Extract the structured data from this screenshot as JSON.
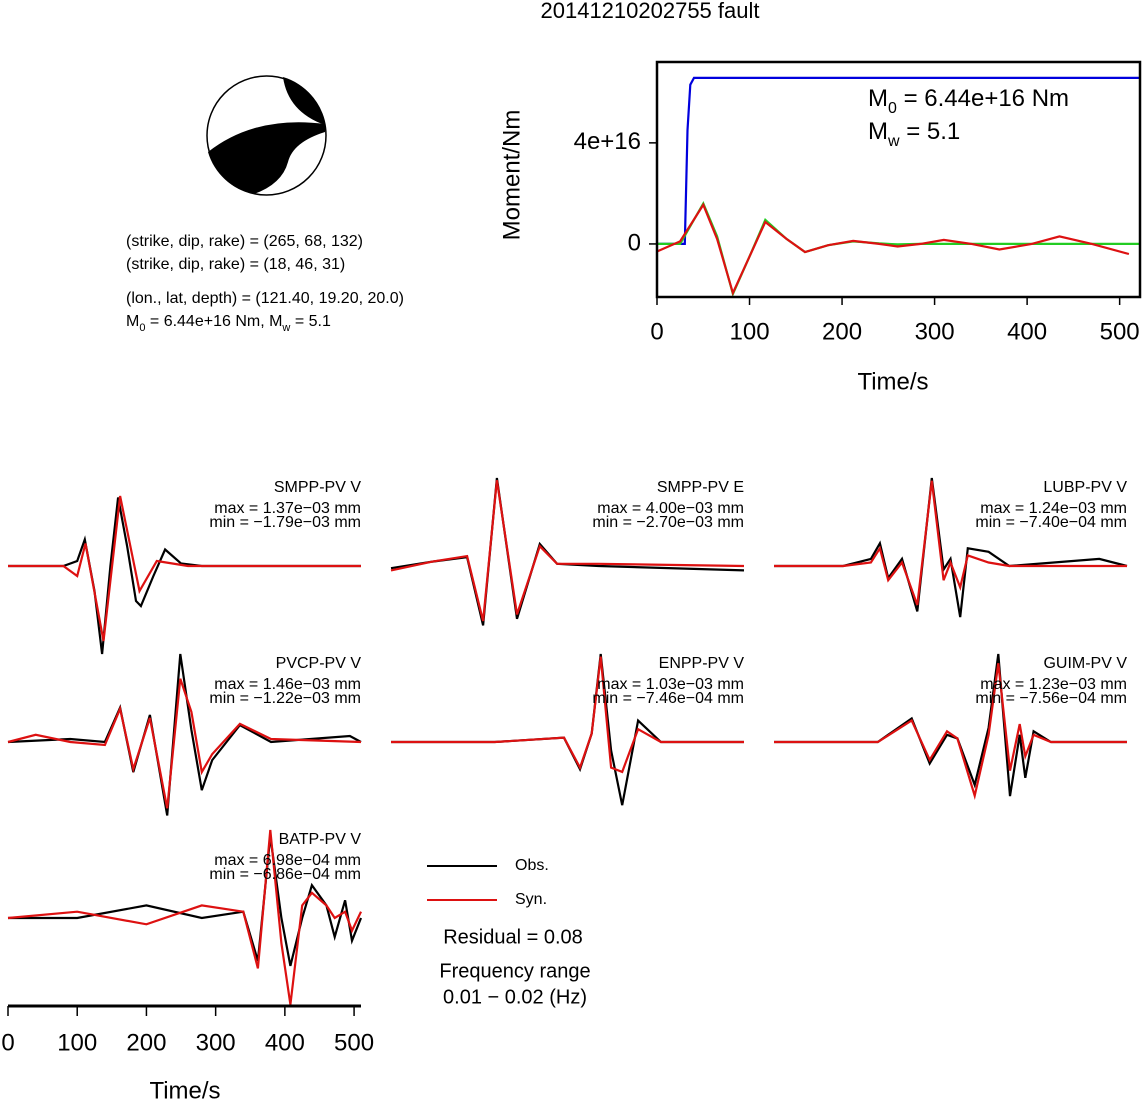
{
  "title": "20141210202755 fault",
  "mechanism_text": [
    "(strike, dip, rake) = (265, 68, 132)",
    "(strike, dip, rake) = (18, 46, 31)",
    "(lon., lat, depth) = (121.40, 19.20, 20.0)",
    [
      "M",
      "0",
      " = 6.44e+16 Nm, M",
      "w",
      " = 5.1"
    ]
  ],
  "residual": "Residual = 0.08",
  "frequency": [
    "Frequency range",
    "0.01 − 0.02 (Hz)"
  ],
  "chart_data": [
    {
      "type": "line",
      "xlabel": "Time/s",
      "ylabel": "Moment/Nm",
      "annotations": [
        [
          "M",
          "0",
          " = 6.44e+16 Nm"
        ],
        [
          "M",
          "w",
          " = 5.1"
        ]
      ],
      "xlim": [
        0,
        522
      ],
      "ylim": [
        -2.1e+16,
        7.2e+16
      ],
      "xticks": [
        0,
        100,
        200,
        300,
        400,
        500
      ],
      "yticks": [
        0,
        {
          "value": 4e+16,
          "label": "4e+16"
        }
      ],
      "series": [
        {
          "color": "#0000dd",
          "x": [
            0,
            30,
            33,
            36,
            40,
            522
          ],
          "values": [
            0,
            0,
            4.5e+16,
            6.3e+16,
            6.57e+16,
            6.57e+16
          ]
        },
        {
          "color": "#22cc22",
          "x": [
            0,
            25,
            50,
            65,
            82,
            100,
            117,
            140,
            160,
            185,
            212,
            240,
            260,
            285,
            310,
            340,
            370,
            405,
            435,
            470,
            522
          ],
          "values": [
            0,
            0,
            1.6e+16,
            3000000000000000.0,
            -1.98e+16,
            -5000000000000000.0,
            9500000000000000.0,
            2000000000000000.0,
            -3200000000000000.0,
            -500000000000000.0,
            1000000000000000.0,
            200000000000000.0,
            -200000000000000.0,
            0,
            0,
            0,
            0,
            0,
            0,
            0,
            0
          ]
        },
        {
          "color": "#dd1111",
          "x": [
            0,
            25,
            50,
            65,
            82,
            100,
            117,
            140,
            160,
            185,
            212,
            240,
            260,
            285,
            310,
            340,
            370,
            405,
            435,
            470,
            510
          ],
          "values": [
            -3000000000000000.0,
            1000000000000000.0,
            1.55e+16,
            2000000000000000.0,
            -1.94e+16,
            -5000000000000000.0,
            8700000000000000.0,
            2000000000000000.0,
            -3200000000000000.0,
            -500000000000000.0,
            1200000000000000.0,
            0,
            -1000000000000000.0,
            0,
            1600000000000000.0,
            0,
            -2200000000000000.0,
            0,
            3000000000000000.0,
            0,
            -4000000000000000.0
          ]
        }
      ]
    },
    {
      "type": "waveform",
      "title": "SMPP-PV V",
      "max_label": "max = 1.37e−03 mm",
      "min_label": "min = −1.79e−03 mm",
      "xlim": [
        0,
        510
      ],
      "series": [
        {
          "name": "Obs.",
          "color": "#000000",
          "x": [
            0,
            80,
            100,
            111,
            125,
            136,
            148,
            159,
            172,
            185,
            192,
            210,
            227,
            250,
            280,
            510
          ],
          "values": [
            0,
            0,
            0.0001,
            0.00053,
            -0.0005,
            -0.00176,
            0,
            0.00137,
            0.0004,
            -0.0007,
            -0.0008,
            -0.0002,
            0.00033,
            5e-05,
            0,
            0
          ]
        },
        {
          "name": "Syn.",
          "color": "#dd1111",
          "x": [
            0,
            80,
            100,
            112,
            138,
            162,
            190,
            215,
            260,
            510
          ],
          "values": [
            0,
            0,
            -0.0002,
            0.00045,
            -0.0015,
            0.0014,
            -0.0005,
            0.0001,
            0,
            0
          ]
        }
      ]
    },
    {
      "type": "waveform",
      "title": "SMPP-PV E",
      "max_label": "max = 4.00e−03 mm",
      "min_label": "min = −2.70e−03 mm",
      "xlim": [
        0,
        510
      ],
      "series": [
        {
          "color": "#000000",
          "x": [
            0,
            60,
            110,
            133,
            153,
            182,
            215,
            240,
            300,
            510
          ],
          "values": [
            -0.0001,
            0.0002,
            0.0004,
            -0.0027,
            0.004,
            -0.0024,
            0.001,
            0.0001,
            0,
            -0.0002
          ]
        },
        {
          "color": "#dd1111",
          "x": [
            0,
            60,
            110,
            133,
            153,
            182,
            215,
            240,
            300,
            510
          ],
          "values": [
            -0.0002,
            0.0002,
            0.00045,
            -0.0025,
            0.0039,
            -0.0022,
            0.0009,
            0.0001,
            0.0001,
            0
          ]
        }
      ]
    },
    {
      "type": "waveform",
      "title": "LUBP-PV V",
      "max_label": "max = 1.24e−03 mm",
      "min_label": "min = −7.40e−04 mm",
      "xlim": [
        0,
        510
      ],
      "series": [
        {
          "color": "#000000",
          "x": [
            0,
            100,
            140,
            153,
            165,
            185,
            207,
            228,
            245,
            255,
            269,
            280,
            310,
            340,
            470,
            510
          ],
          "values": [
            0,
            0,
            0.0001,
            0.00032,
            -0.00017,
            0.0001,
            -0.00064,
            0.00124,
            -5e-05,
            0.0001,
            -0.00072,
            0.00025,
            0.0002,
            0,
            0.0001,
            0
          ]
        },
        {
          "color": "#dd1111",
          "x": [
            0,
            100,
            140,
            153,
            165,
            185,
            207,
            228,
            245,
            255,
            269,
            280,
            310,
            340,
            470,
            510
          ],
          "values": [
            0,
            0,
            5e-05,
            0.00025,
            -0.0002,
            5e-05,
            -0.00055,
            0.0012,
            -0.0002,
            5e-05,
            -0.0003,
            0.00015,
            5e-05,
            0,
            0,
            0
          ]
        }
      ]
    },
    {
      "type": "waveform",
      "title": "PVCP-PV V",
      "max_label": "max = 1.46e−03 mm",
      "min_label": "min = −1.22e−03 mm",
      "xlim": [
        0,
        510
      ],
      "series": [
        {
          "color": "#000000",
          "x": [
            0,
            90,
            140,
            162,
            181,
            205,
            230,
            249,
            265,
            280,
            295,
            335,
            380,
            494,
            510
          ],
          "values": [
            0,
            5e-05,
            0,
            0.00057,
            -0.0005,
            0.00045,
            -0.00122,
            0.00146,
            0.0002,
            -0.0008,
            -0.0003,
            0.00028,
            0,
            0.0001,
            0
          ]
        },
        {
          "color": "#dd1111",
          "x": [
            0,
            40,
            90,
            140,
            162,
            181,
            205,
            230,
            249,
            265,
            280,
            295,
            335,
            380,
            510
          ],
          "values": [
            0,
            0.00012,
            0,
            -5e-05,
            0.00055,
            -0.00045,
            0.0004,
            -0.0011,
            0.00105,
            0.0005,
            -0.0005,
            -0.0002,
            0.0003,
            5e-05,
            0
          ]
        }
      ]
    },
    {
      "type": "waveform",
      "title": "ENPP-PV V",
      "max_label": "max = 1.03e−03 mm",
      "min_label": "min = −7.46e−04 mm",
      "xlim": [
        0,
        510
      ],
      "series": [
        {
          "color": "#000000",
          "x": [
            0,
            150,
            250,
            273,
            290,
            303,
            318,
            334,
            357,
            390,
            510
          ],
          "values": [
            0,
            0,
            5e-05,
            -0.00032,
            0.0001,
            0.00103,
            -0.0001,
            -0.00074,
            0.00025,
            0,
            0
          ]
        },
        {
          "color": "#dd1111",
          "x": [
            0,
            150,
            250,
            273,
            290,
            303,
            318,
            334,
            357,
            390,
            510
          ],
          "values": [
            0,
            0,
            5e-05,
            -0.0003,
            0.0001,
            0.001,
            -0.0003,
            -0.00035,
            0.00015,
            0,
            0
          ]
        }
      ]
    },
    {
      "type": "waveform",
      "title": "GUIM-PV V",
      "max_label": "max = 1.23e−03 mm",
      "min_label": "min = −7.56e−04 mm",
      "xlim": [
        0,
        510
      ],
      "series": [
        {
          "color": "#000000",
          "x": [
            0,
            150,
            199,
            225,
            250,
            265,
            290,
            310,
            324,
            341,
            355,
            363,
            375,
            400,
            510
          ],
          "values": [
            0,
            0,
            0.00033,
            -0.0003,
            0.0001,
            5e-05,
            -0.0006,
            0.0002,
            0.00123,
            -0.000756,
            0.0001,
            -0.0005,
            0.00015,
            0,
            0
          ]
        },
        {
          "color": "#dd1111",
          "x": [
            0,
            150,
            199,
            225,
            250,
            265,
            290,
            310,
            324,
            341,
            355,
            363,
            375,
            400,
            510
          ],
          "values": [
            0,
            0,
            0.0003,
            -0.00025,
            0.00015,
            5e-05,
            -0.00075,
            0.0001,
            0.0011,
            -0.0004,
            0.00025,
            -0.0002,
            0.0001,
            0,
            0
          ]
        }
      ]
    },
    {
      "type": "waveform",
      "title": "BATP-PV V",
      "max_label": "max = 6.98e−04 mm",
      "min_label": "min = −6.86e−04 mm",
      "xlim": [
        0,
        510
      ],
      "xlabel": "Time/s",
      "xticks": [
        0,
        100,
        200,
        300,
        400,
        500
      ],
      "series": [
        {
          "color": "#000000",
          "x": [
            0,
            100,
            200,
            280,
            340,
            361,
            379,
            395,
            408,
            425,
            439,
            460,
            472,
            487,
            497,
            510
          ],
          "values": [
            0,
            0,
            0.0001,
            0,
            5e-05,
            -0.00034,
            0.00065,
            0,
            -0.00038,
            0,
            0.00026,
            0.0001,
            -0.00015,
            0.00014,
            -0.00018,
            0
          ]
        },
        {
          "color": "#dd1111",
          "x": [
            0,
            100,
            200,
            280,
            340,
            361,
            379,
            395,
            408,
            425,
            439,
            460,
            472,
            487,
            497,
            510
          ],
          "values": [
            0,
            5e-05,
            -5e-05,
            0.0001,
            5e-05,
            -0.0004,
            0.000698,
            -0.0002,
            -0.000686,
            0.0001,
            0.0002,
            0.0001,
            0,
            5e-05,
            -0.0001,
            5e-05
          ]
        }
      ]
    }
  ]
}
